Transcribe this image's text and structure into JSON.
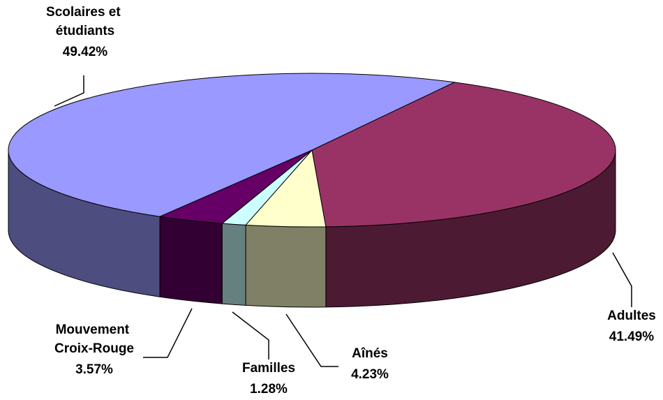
{
  "chart_data": {
    "type": "pie3d",
    "categories": [
      "Adultes",
      "Aînés",
      "Familles",
      "Mouvement Croix-Rouge",
      "Scolaires et étudiants"
    ],
    "values": [
      41.49,
      4.23,
      1.28,
      3.57,
      49.42
    ],
    "value_labels": [
      "41.49%",
      "4.23%",
      "1.28%",
      "3.57%",
      "49.42%"
    ],
    "colors": [
      "#993366",
      "#ffffcc",
      "#ccffff",
      "#660066",
      "#9999ff"
    ]
  }
}
